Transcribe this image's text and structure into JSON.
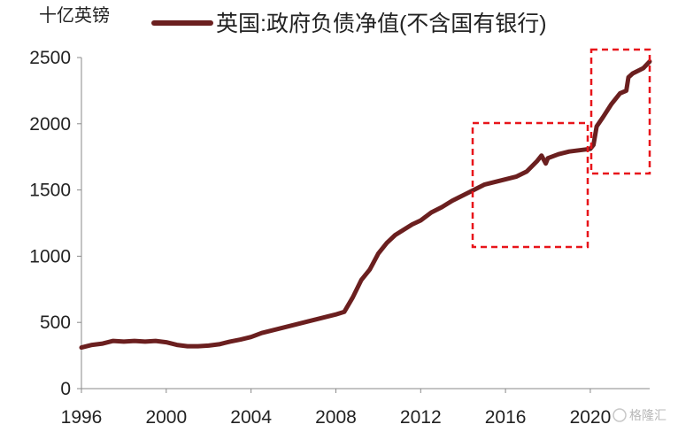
{
  "chart_data": {
    "type": "line",
    "title": "",
    "ylabel": "十亿英镑",
    "xlabel": "",
    "xlim": [
      1996,
      2022.8
    ],
    "ylim": [
      0,
      2500
    ],
    "grid": false,
    "legend_position": "top",
    "x_ticks": [
      "1996",
      "2000",
      "2004",
      "2008",
      "2012",
      "2016",
      "2020"
    ],
    "y_ticks": [
      "0",
      "500",
      "1000",
      "1500",
      "2000",
      "2500"
    ],
    "series": [
      {
        "name": "英国:政府负债净值(不含国有银行)",
        "color": "#6b1f1f",
        "x": [
          1996.0,
          1996.5,
          1997.0,
          1997.5,
          1998.0,
          1998.5,
          1999.0,
          1999.5,
          2000.0,
          2000.5,
          2001.0,
          2001.5,
          2002.0,
          2002.5,
          2003.0,
          2003.5,
          2004.0,
          2004.5,
          2005.0,
          2005.5,
          2006.0,
          2006.5,
          2007.0,
          2007.5,
          2008.0,
          2008.4,
          2008.8,
          2009.2,
          2009.6,
          2010.0,
          2010.4,
          2010.8,
          2011.2,
          2011.6,
          2012.0,
          2012.5,
          2013.0,
          2013.5,
          2014.0,
          2014.5,
          2015.0,
          2015.5,
          2016.0,
          2016.5,
          2017.0,
          2017.5,
          2017.7,
          2017.9,
          2018.0,
          2018.5,
          2019.0,
          2019.5,
          2020.0,
          2020.15,
          2020.3,
          2020.6,
          2021.0,
          2021.4,
          2021.7,
          2021.8,
          2022.0,
          2022.5,
          2022.8
        ],
        "values": [
          310,
          330,
          340,
          360,
          355,
          360,
          355,
          360,
          350,
          330,
          320,
          320,
          325,
          335,
          355,
          370,
          390,
          420,
          440,
          460,
          480,
          500,
          520,
          540,
          560,
          580,
          690,
          820,
          900,
          1020,
          1100,
          1160,
          1200,
          1240,
          1270,
          1330,
          1370,
          1420,
          1460,
          1500,
          1540,
          1560,
          1580,
          1600,
          1640,
          1720,
          1760,
          1700,
          1740,
          1770,
          1790,
          1800,
          1810,
          1840,
          1980,
          2050,
          2150,
          2230,
          2250,
          2350,
          2380,
          2420,
          2470
        ]
      }
    ]
  },
  "watermark": "格隆汇"
}
